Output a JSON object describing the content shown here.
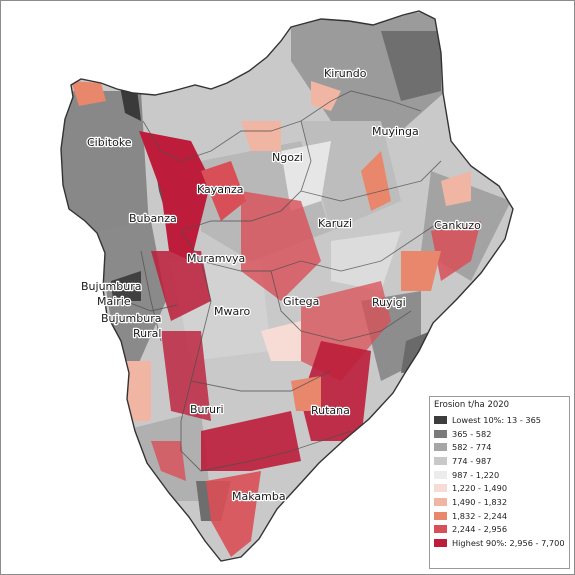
{
  "provinces": [
    {
      "name": "Kirundo"
    },
    {
      "name": "Muyinga"
    },
    {
      "name": "Cibitoke"
    },
    {
      "name": "Ngozi"
    },
    {
      "name": "Kayanza"
    },
    {
      "name": "Bubanza"
    },
    {
      "name": "Karuzi"
    },
    {
      "name": "Cankuzo"
    },
    {
      "name": "Muramvya"
    },
    {
      "name": "Bujumbura"
    },
    {
      "name": "Mairie"
    },
    {
      "name": "Bujumbura"
    },
    {
      "name": "Rural"
    },
    {
      "name": "Mwaro"
    },
    {
      "name": "Gitega"
    },
    {
      "name": "Ruyigi"
    },
    {
      "name": "Bururi"
    },
    {
      "name": "Rutana"
    },
    {
      "name": "Makamba"
    }
  ],
  "legend": {
    "title": "Erosion t/ha 2020",
    "classes": [
      {
        "label": "Lowest 10%: 13 - 365",
        "color": "#3d3d3d"
      },
      {
        "label": "365 - 582",
        "color": "#7a7a7a"
      },
      {
        "label": "582 - 774",
        "color": "#a6a6a6"
      },
      {
        "label": "774 - 987",
        "color": "#c8c8c8"
      },
      {
        "label": "987 - 1,220",
        "color": "#ececec"
      },
      {
        "label": "1,220 - 1,490",
        "color": "#f7dcd6"
      },
      {
        "label": "1,490 - 1,832",
        "color": "#f0b6a3"
      },
      {
        "label": "1,832 - 2,244",
        "color": "#e8876c"
      },
      {
        "label": "2,244 - 2,956",
        "color": "#d94f57"
      },
      {
        "label": "Highest 90%: 2,956 - 7,700",
        "color": "#bd1d3a"
      }
    ]
  }
}
